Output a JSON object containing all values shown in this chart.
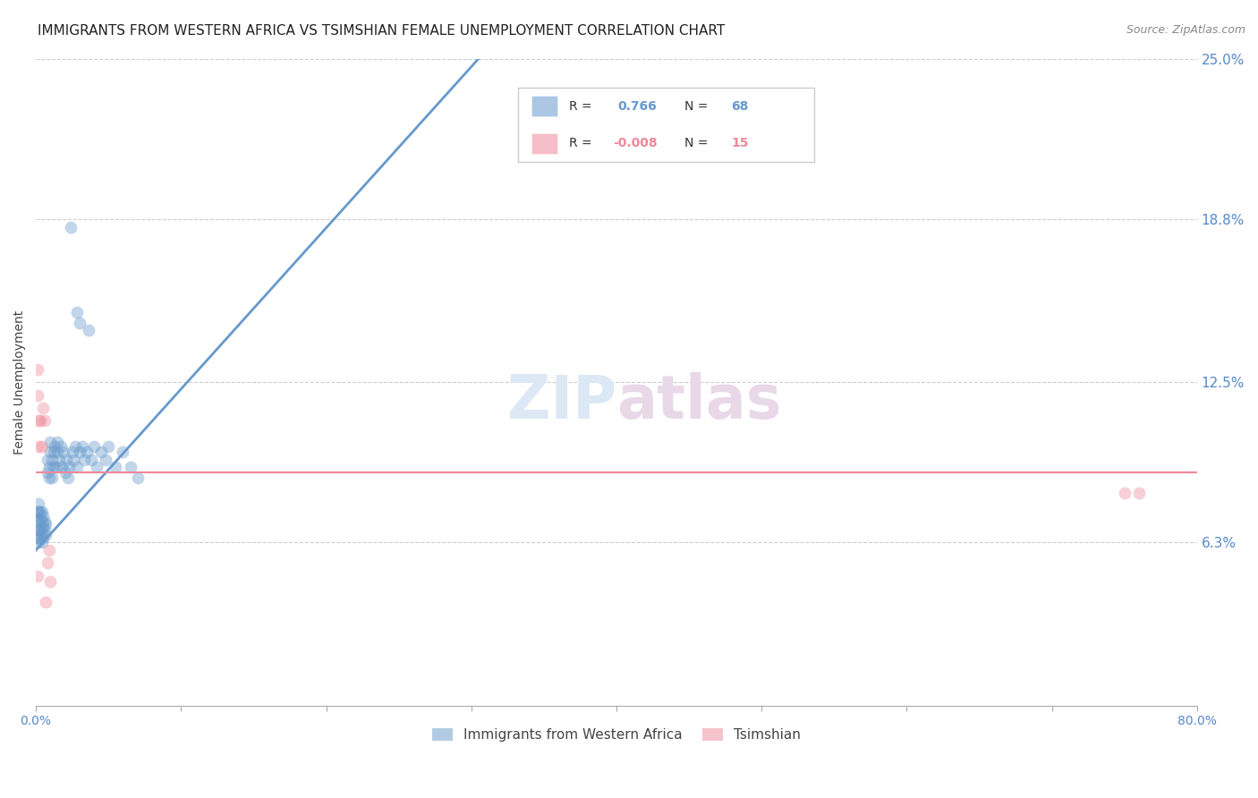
{
  "title": "IMMIGRANTS FROM WESTERN AFRICA VS TSIMSHIAN FEMALE UNEMPLOYMENT CORRELATION CHART",
  "source": "Source: ZipAtlas.com",
  "ylabel": "Female Unemployment",
  "watermark": "ZIPatlas",
  "xlim": [
    0.0,
    0.8
  ],
  "ylim": [
    0.0,
    0.25
  ],
  "x_ticks": [
    0.0,
    0.1,
    0.2,
    0.3,
    0.4,
    0.5,
    0.6,
    0.7,
    0.8
  ],
  "y_tick_labels_right": [
    "25.0%",
    "18.8%",
    "12.5%",
    "6.3%"
  ],
  "y_tick_positions_right": [
    0.25,
    0.188,
    0.125,
    0.063
  ],
  "blue_scatter": [
    [
      0.001,
      0.065
    ],
    [
      0.001,
      0.068
    ],
    [
      0.001,
      0.072
    ],
    [
      0.001,
      0.075
    ],
    [
      0.002,
      0.063
    ],
    [
      0.002,
      0.068
    ],
    [
      0.002,
      0.071
    ],
    [
      0.002,
      0.075
    ],
    [
      0.002,
      0.078
    ],
    [
      0.003,
      0.065
    ],
    [
      0.003,
      0.068
    ],
    [
      0.003,
      0.072
    ],
    [
      0.003,
      0.075
    ],
    [
      0.004,
      0.063
    ],
    [
      0.004,
      0.067
    ],
    [
      0.004,
      0.071
    ],
    [
      0.004,
      0.075
    ],
    [
      0.005,
      0.065
    ],
    [
      0.005,
      0.069
    ],
    [
      0.005,
      0.073
    ],
    [
      0.006,
      0.068
    ],
    [
      0.006,
      0.071
    ],
    [
      0.007,
      0.066
    ],
    [
      0.007,
      0.07
    ],
    [
      0.008,
      0.09
    ],
    [
      0.008,
      0.095
    ],
    [
      0.009,
      0.088
    ],
    [
      0.009,
      0.092
    ],
    [
      0.01,
      0.098
    ],
    [
      0.01,
      0.102
    ],
    [
      0.011,
      0.088
    ],
    [
      0.011,
      0.095
    ],
    [
      0.012,
      0.092
    ],
    [
      0.012,
      0.098
    ],
    [
      0.013,
      0.1
    ],
    [
      0.014,
      0.092
    ],
    [
      0.015,
      0.098
    ],
    [
      0.015,
      0.102
    ],
    [
      0.016,
      0.095
    ],
    [
      0.017,
      0.1
    ],
    [
      0.018,
      0.092
    ],
    [
      0.019,
      0.098
    ],
    [
      0.02,
      0.09
    ],
    [
      0.021,
      0.095
    ],
    [
      0.022,
      0.088
    ],
    [
      0.023,
      0.092
    ],
    [
      0.025,
      0.098
    ],
    [
      0.026,
      0.095
    ],
    [
      0.027,
      0.1
    ],
    [
      0.028,
      0.092
    ],
    [
      0.03,
      0.098
    ],
    [
      0.032,
      0.1
    ],
    [
      0.033,
      0.095
    ],
    [
      0.035,
      0.098
    ],
    [
      0.038,
      0.095
    ],
    [
      0.04,
      0.1
    ],
    [
      0.042,
      0.092
    ],
    [
      0.045,
      0.098
    ],
    [
      0.048,
      0.095
    ],
    [
      0.05,
      0.1
    ],
    [
      0.055,
      0.092
    ],
    [
      0.06,
      0.098
    ],
    [
      0.065,
      0.092
    ],
    [
      0.07,
      0.088
    ],
    [
      0.024,
      0.185
    ],
    [
      0.028,
      0.152
    ],
    [
      0.03,
      0.148
    ],
    [
      0.036,
      0.145
    ]
  ],
  "pink_scatter": [
    [
      0.001,
      0.05
    ],
    [
      0.001,
      0.12
    ],
    [
      0.001,
      0.13
    ],
    [
      0.002,
      0.1
    ],
    [
      0.002,
      0.11
    ],
    [
      0.003,
      0.11
    ],
    [
      0.004,
      0.1
    ],
    [
      0.005,
      0.115
    ],
    [
      0.006,
      0.11
    ],
    [
      0.007,
      0.04
    ],
    [
      0.008,
      0.055
    ],
    [
      0.009,
      0.06
    ],
    [
      0.01,
      0.048
    ],
    [
      0.75,
      0.082
    ],
    [
      0.76,
      0.082
    ]
  ],
  "blue_line_x": [
    0.0,
    0.305
  ],
  "blue_line_y": [
    0.06,
    0.25
  ],
  "pink_line_x": [
    0.0,
    0.8
  ],
  "pink_line_y": [
    0.09,
    0.09
  ],
  "blue_color": "#6699cc",
  "pink_color": "#ee8899",
  "grid_color": "#cccccc",
  "title_fontsize": 11,
  "source_fontsize": 9,
  "axis_label_fontsize": 10,
  "watermark_fontsize": 48,
  "watermark_color": "#dce8f5",
  "scatter_size": 100,
  "scatter_alpha": 0.4
}
